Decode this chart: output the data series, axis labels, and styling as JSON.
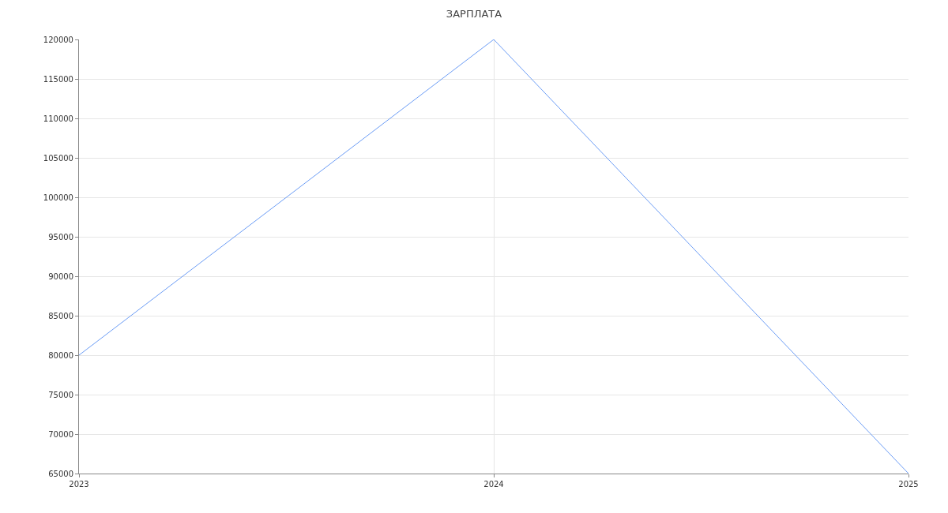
{
  "chart_data": {
    "type": "line",
    "title": "ЗАРПЛАТА",
    "x": [
      2023,
      2024,
      2025
    ],
    "series": [
      {
        "color": "#6b9cf5",
        "values": [
          80000,
          120000,
          65000
        ]
      }
    ],
    "xlim": [
      2023,
      2025
    ],
    "xticks": [
      2023,
      2024,
      2025
    ],
    "ylim": [
      65000,
      120000
    ],
    "yticks": [
      65000,
      70000,
      75000,
      80000,
      85000,
      90000,
      95000,
      100000,
      105000,
      110000,
      115000,
      120000
    ],
    "grid": true,
    "marker": "none",
    "line_style": "solid"
  }
}
